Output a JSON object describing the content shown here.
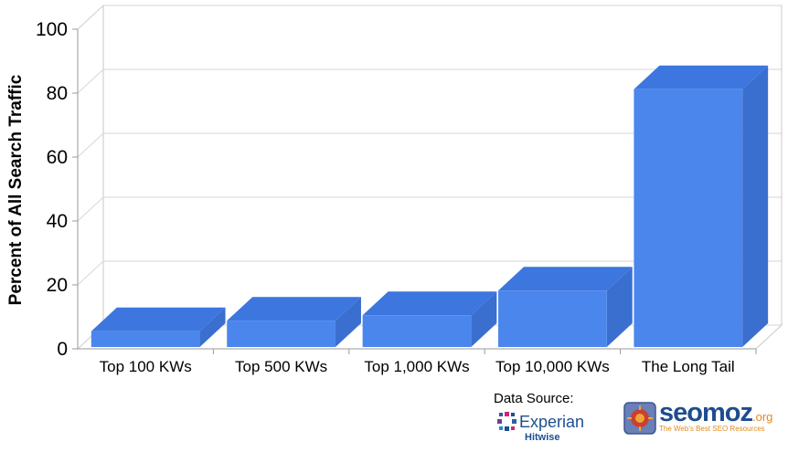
{
  "chart_data": {
    "type": "bar",
    "style": "3d",
    "categories": [
      "Top 100 KWs",
      "Top 500 KWs",
      "Top 1,000 KWs",
      "Top 10,000 KWs",
      "The Long Tail"
    ],
    "values": [
      5.5,
      8.8,
      10.5,
      18.2,
      81.2
    ],
    "ylabel": "Percent of All Search Traffic",
    "xlabel": "",
    "ylim": [
      0,
      100
    ],
    "yticks": [
      "0",
      "20",
      "40",
      "60",
      "80",
      "100"
    ],
    "grid": true,
    "bar_color": "#4a86ec"
  },
  "source": {
    "label": "Data Source:",
    "experian_name": "Experian",
    "experian_sub": "Hitwise",
    "seomoz_name": "seomoz",
    "seomoz_tld": ".org",
    "seomoz_tagline": "The Web's Best SEO Resources"
  }
}
